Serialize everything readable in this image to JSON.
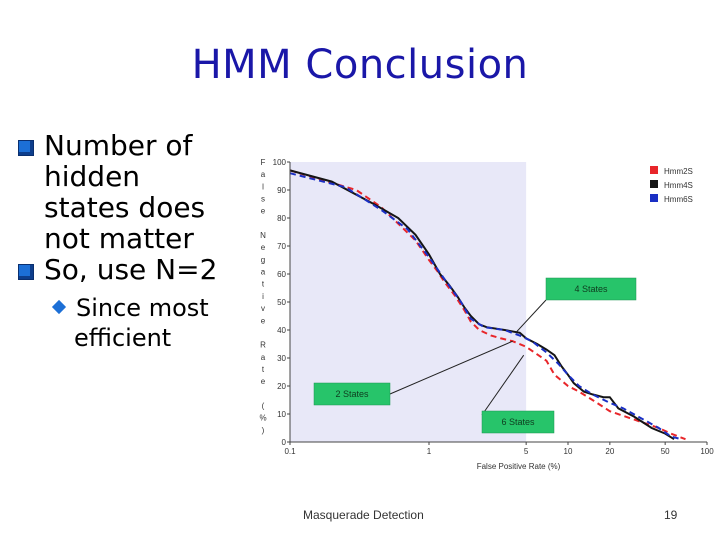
{
  "slide": {
    "title": "HMM Conclusion",
    "bullets": [
      {
        "text": "Number of hidden states does not matter"
      },
      {
        "text": "So, use N=2"
      }
    ],
    "sub_bullet": {
      "line1": "Since most",
      "line2": "efficient"
    },
    "footer_left": "Masquerade Detection",
    "page_number": "19"
  },
  "chart_data": {
    "type": "line",
    "xlabel": "False Positive Rate (%)",
    "ylabel": "False Negative Rate (%)",
    "x_scale": "log",
    "xlim": [
      0.1,
      100
    ],
    "ylim": [
      0,
      100
    ],
    "xticks": [
      "0.1",
      "1",
      "5",
      "10",
      "20",
      "50",
      "100"
    ],
    "yticks": [
      "0",
      "10",
      "20",
      "30",
      "40",
      "50",
      "60",
      "70",
      "80",
      "90",
      "100"
    ],
    "highlight_region_x": [
      0.1,
      5
    ],
    "legend_position": "top-right",
    "series": [
      {
        "name": "Hmm2S",
        "color": "#e8262a",
        "style": "dashed",
        "points": [
          [
            0.1,
            97
          ],
          [
            0.3,
            90
          ],
          [
            0.45,
            84
          ],
          [
            0.6,
            78
          ],
          [
            0.8,
            72
          ],
          [
            1.0,
            65
          ],
          [
            1.15,
            61
          ],
          [
            1.3,
            57
          ],
          [
            1.55,
            52
          ],
          [
            1.8,
            47
          ],
          [
            2.0,
            43
          ],
          [
            2.3,
            40
          ],
          [
            2.8,
            38
          ],
          [
            3.3,
            37
          ],
          [
            4.0,
            36
          ],
          [
            5.0,
            34
          ],
          [
            7.0,
            29
          ],
          [
            8.0,
            24
          ],
          [
            10.0,
            20
          ],
          [
            12.0,
            18
          ],
          [
            15.0,
            15
          ],
          [
            20.0,
            11
          ],
          [
            30.0,
            8
          ],
          [
            45.0,
            5
          ],
          [
            55.0,
            3
          ],
          [
            70.0,
            1
          ]
        ]
      },
      {
        "name": "Hmm4S",
        "color": "#151515",
        "style": "solid",
        "points": [
          [
            0.1,
            97
          ],
          [
            0.2,
            93
          ],
          [
            0.4,
            85
          ],
          [
            0.6,
            80
          ],
          [
            0.8,
            74
          ],
          [
            1.0,
            67
          ],
          [
            1.2,
            60
          ],
          [
            1.4,
            56
          ],
          [
            1.6,
            52
          ],
          [
            1.8,
            48
          ],
          [
            2.0,
            45
          ],
          [
            2.3,
            42
          ],
          [
            2.6,
            41
          ],
          [
            3.5,
            40
          ],
          [
            4.5,
            39
          ],
          [
            5.0,
            37
          ],
          [
            6.0,
            35
          ],
          [
            7.0,
            33
          ],
          [
            8.0,
            31
          ],
          [
            9.0,
            27
          ],
          [
            10.0,
            24
          ],
          [
            11.0,
            21
          ],
          [
            13.0,
            18
          ],
          [
            15.0,
            17
          ],
          [
            18.0,
            16
          ],
          [
            20.0,
            16
          ],
          [
            23.0,
            12
          ],
          [
            30.0,
            9
          ],
          [
            40.0,
            5
          ],
          [
            50.0,
            3
          ],
          [
            58.0,
            1
          ]
        ]
      },
      {
        "name": "Hmm6S",
        "color": "#1a2fc4",
        "style": "dashed",
        "points": [
          [
            0.1,
            96
          ],
          [
            0.25,
            91
          ],
          [
            0.45,
            83
          ],
          [
            0.7,
            76
          ],
          [
            1.0,
            66
          ],
          [
            1.3,
            58
          ],
          [
            1.7,
            50
          ],
          [
            2.0,
            44
          ],
          [
            2.5,
            41
          ],
          [
            3.5,
            40
          ],
          [
            4.5,
            38
          ],
          [
            5.5,
            36
          ],
          [
            7.0,
            32
          ],
          [
            8.5,
            28
          ],
          [
            10.0,
            24
          ],
          [
            12.0,
            20
          ],
          [
            15.0,
            17
          ],
          [
            20.0,
            14
          ],
          [
            25.0,
            12
          ],
          [
            35.0,
            8
          ],
          [
            45.0,
            5
          ],
          [
            55.0,
            2
          ],
          [
            65.0,
            1
          ]
        ]
      }
    ],
    "annotations": [
      {
        "text": "4 States",
        "color": "#27c46a",
        "x": 4.2,
        "y": 39
      },
      {
        "text": "2 States",
        "color": "#27c46a",
        "x": 4.0,
        "y": 36
      },
      {
        "text": "6 States",
        "color": "#27c46a",
        "x": 4.8,
        "y": 31
      }
    ]
  }
}
